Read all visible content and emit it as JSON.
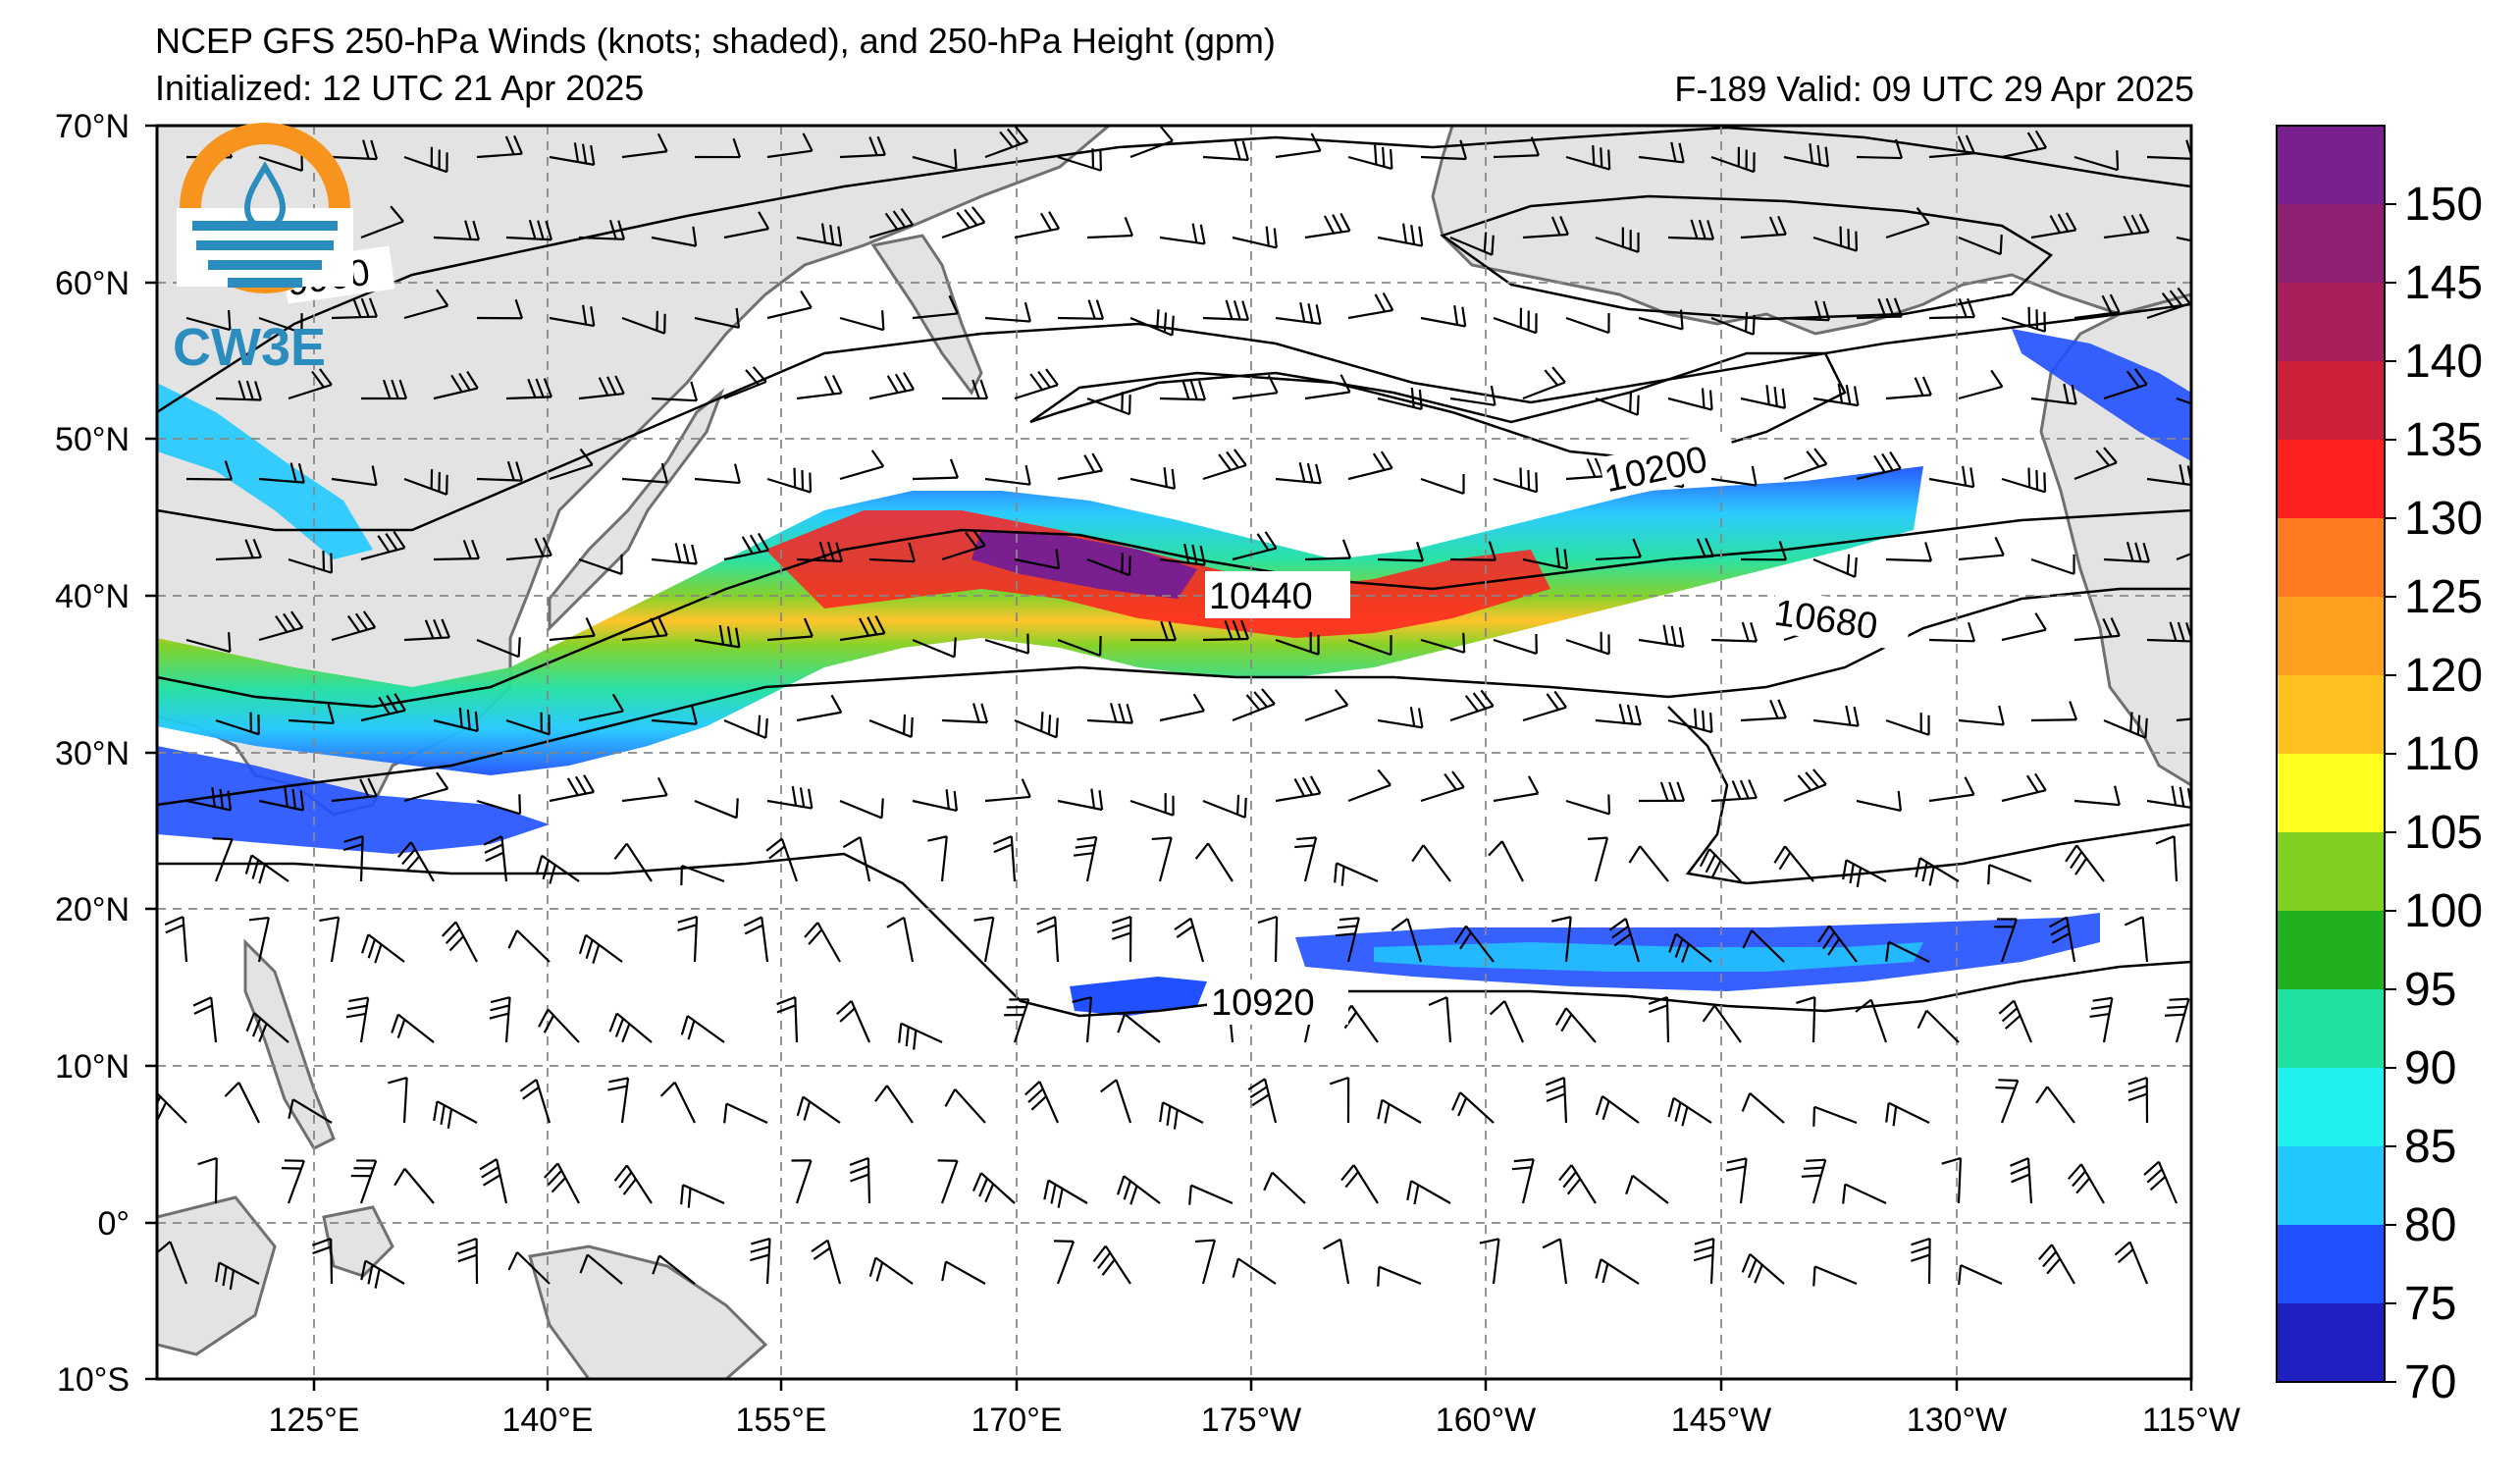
{
  "header": {
    "title": "NCEP GFS 250-hPa Winds (knots; shaded), and 250-hPa Height (gpm)",
    "initialized": "Initialized: 12 UTC 21 Apr 2025",
    "valid": "F-189  Valid: 09 UTC 29 Apr 2025"
  },
  "logo": {
    "text": "CW3E",
    "icon": "cw3e-water-drop-sun-logo",
    "colors": {
      "orange": "#f7941d",
      "blue": "#2b8cbe"
    }
  },
  "map": {
    "lat_labels": [
      "70°N",
      "60°N",
      "50°N",
      "40°N",
      "30°N",
      "20°N",
      "10°N",
      "0°",
      "10°S"
    ],
    "lon_labels": [
      "125°E",
      "140°E",
      "155°E",
      "170°E",
      "175°W",
      "160°W",
      "145°W",
      "130°W",
      "115°W"
    ],
    "lat_range": [
      -10,
      70
    ],
    "lon_range": [
      "115°E",
      "115°W"
    ],
    "land_color": "#e3e3e3",
    "coast_color": "#707070",
    "grid": "dashed"
  },
  "contours": {
    "labels": [
      "9960",
      "10200",
      "10440",
      "10680",
      "10920"
    ],
    "units": "gpm"
  },
  "colorbar": {
    "ticks": [
      "150",
      "145",
      "140",
      "135",
      "130",
      "125",
      "120",
      "110",
      "105",
      "100",
      "95",
      "90",
      "85",
      "80",
      "75",
      "70"
    ],
    "colors": [
      "#7a1f8f",
      "#8f1f72",
      "#a81f5c",
      "#cc1f3a",
      "#ff2020",
      "#ff7a20",
      "#ff9f20",
      "#ffc020",
      "#ffff20",
      "#7fd020",
      "#20b020",
      "#20e0a0",
      "#20f0f0",
      "#20c8ff",
      "#2050ff",
      "#2020c0"
    ],
    "units": "knots"
  }
}
